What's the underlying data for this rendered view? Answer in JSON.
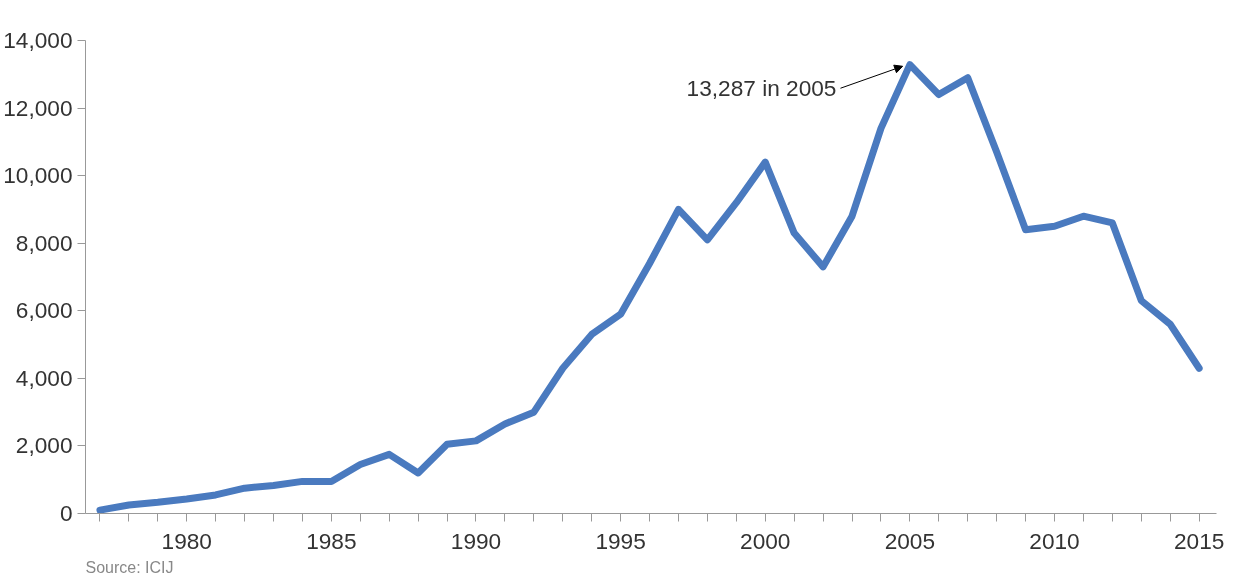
{
  "chart_data": {
    "type": "line",
    "x": [
      1977,
      1978,
      1979,
      1980,
      1981,
      1982,
      1983,
      1984,
      1985,
      1986,
      1987,
      1988,
      1989,
      1990,
      1991,
      1992,
      1993,
      1994,
      1995,
      1996,
      1997,
      1998,
      1999,
      2000,
      2001,
      2002,
      2003,
      2004,
      2005,
      2006,
      2007,
      2008,
      2009,
      2010,
      2011,
      2012,
      2013,
      2014,
      2015
    ],
    "series": [
      {
        "color": "#4a7abf",
        "values": [
          100,
          250,
          330,
          430,
          550,
          750,
          830,
          950,
          950,
          1450,
          1750,
          1200,
          2050,
          2150,
          2650,
          3000,
          4300,
          5300,
          5900,
          7400,
          9000,
          8100,
          9200,
          10400,
          8300,
          7300,
          8800,
          11400,
          13287,
          12400,
          12900,
          10700,
          8400,
          8500,
          8800,
          8600,
          6300,
          5600,
          4300
        ]
      }
    ],
    "xlim": [
      1976.5,
      2015.6
    ],
    "xticks": [
      {
        "value": 1977,
        "label": null
      },
      {
        "value": 1978,
        "label": null
      },
      {
        "value": 1979,
        "label": null
      },
      1980,
      {
        "value": 1981,
        "label": null
      },
      {
        "value": 1982,
        "label": null
      },
      {
        "value": 1983,
        "label": null
      },
      {
        "value": 1984,
        "label": null
      },
      1985,
      {
        "value": 1986,
        "label": null
      },
      {
        "value": 1987,
        "label": null
      },
      {
        "value": 1988,
        "label": null
      },
      {
        "value": 1989,
        "label": null
      },
      1990,
      {
        "value": 1991,
        "label": null
      },
      {
        "value": 1992,
        "label": null
      },
      {
        "value": 1993,
        "label": null
      },
      {
        "value": 1994,
        "label": null
      },
      1995,
      {
        "value": 1996,
        "label": null
      },
      {
        "value": 1997,
        "label": null
      },
      {
        "value": 1998,
        "label": null
      },
      {
        "value": 1999,
        "label": null
      },
      2000,
      {
        "value": 2001,
        "label": null
      },
      {
        "value": 2002,
        "label": null
      },
      {
        "value": 2003,
        "label": null
      },
      {
        "value": 2004,
        "label": null
      },
      2005,
      {
        "value": 2006,
        "label": null
      },
      {
        "value": 2007,
        "label": null
      },
      {
        "value": 2008,
        "label": null
      },
      {
        "value": 2009,
        "label": null
      },
      2010,
      {
        "value": 2011,
        "label": null
      },
      {
        "value": 2012,
        "label": null
      },
      {
        "value": 2013,
        "label": null
      },
      {
        "value": 2014,
        "label": null
      },
      2015
    ],
    "ylim": [
      0,
      14000
    ],
    "yticks": [
      0,
      {
        "value": 2000,
        "label": "2,000"
      },
      {
        "value": 4000,
        "label": "4,000"
      },
      {
        "value": 6000,
        "label": "6,000"
      },
      {
        "value": 8000,
        "label": "8,000"
      },
      {
        "value": 10000,
        "label": "10,000"
      },
      {
        "value": 12000,
        "label": "12,000"
      },
      {
        "value": 14000,
        "label": "14,000"
      }
    ],
    "grid": false,
    "marker": "none",
    "line_style": "solid",
    "annotations": [
      {
        "text": "13,287 in 2005",
        "x": 2005,
        "y": 13287
      },
      "Source: ICIJ"
    ]
  }
}
